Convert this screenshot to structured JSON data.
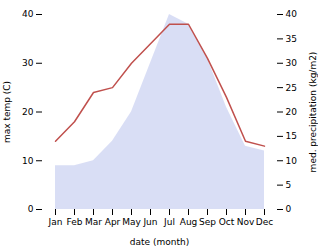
{
  "chart_data": {
    "type": "line",
    "categories": [
      "Jan",
      "Feb",
      "Mar",
      "Apr",
      "May",
      "Jun",
      "Jul",
      "Aug",
      "Sep",
      "Oct",
      "Nov",
      "Dec"
    ],
    "series": [
      {
        "type": "area",
        "axis": "y2",
        "color": "#c5cdf0",
        "values": [
          9,
          9,
          10,
          14,
          20,
          30,
          40,
          38,
          31,
          21,
          13,
          12
        ]
      },
      {
        "type": "line",
        "color": "#c0504d",
        "values": [
          14,
          18,
          24,
          25,
          30,
          34,
          38,
          38,
          31,
          23,
          14,
          13
        ]
      }
    ],
    "xlabel": "date (month)",
    "ylabel": "max temp (C)",
    "y2label": "med. precipitation (kg/m2)",
    "ylim": [
      0,
      40
    ],
    "yticks": [
      0,
      10,
      20,
      30,
      40
    ],
    "y2lim": [
      0,
      40
    ],
    "y2ticks": [
      0,
      5,
      10,
      15,
      20,
      25,
      30,
      35,
      40
    ],
    "grid": false
  }
}
